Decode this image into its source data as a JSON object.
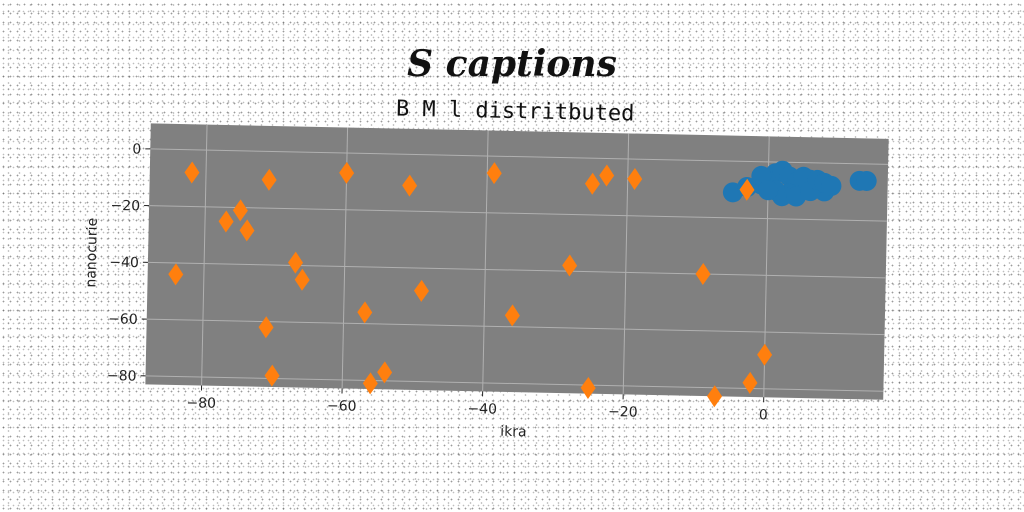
{
  "chart_data": {
    "type": "scatter",
    "title": "S captions",
    "subtitle": "B M l distritbuted",
    "xlabel": "ikra",
    "ylabel": "nanocurie",
    "xlim": [
      -88,
      17
    ],
    "ylim": [
      -83,
      9
    ],
    "xticks": [
      -80,
      -60,
      -40,
      -20,
      0
    ],
    "yticks": [
      0,
      -20,
      -40,
      -60,
      -80
    ],
    "grid": true,
    "legend": "none",
    "colors": {
      "plot_background": "#808080",
      "grid": "#b0b0b0",
      "series_1": "#1f77b4",
      "series_2": "#ff7f0e"
    },
    "series": [
      {
        "marker": "circle",
        "color": "#1f77b4",
        "points": [
          [
            -5,
            -11
          ],
          [
            -3,
            -9
          ],
          [
            -1,
            -8
          ],
          [
            0,
            -6
          ],
          [
            1,
            -4
          ],
          [
            2,
            -3
          ],
          [
            3,
            -5
          ],
          [
            4,
            -7
          ],
          [
            5,
            -9
          ],
          [
            6,
            -6
          ],
          [
            7,
            -8
          ],
          [
            8,
            -10
          ],
          [
            3,
            -11
          ],
          [
            2,
            -12
          ],
          [
            1,
            -10
          ],
          [
            4,
            -12
          ],
          [
            5,
            -5
          ],
          [
            6,
            -10
          ],
          [
            7,
            -6
          ],
          [
            8,
            -7
          ],
          [
            -1,
            -5
          ],
          [
            0,
            -10
          ],
          [
            9,
            -8
          ],
          [
            13,
            -6
          ],
          [
            14,
            -6
          ]
        ]
      },
      {
        "marker": "diamond",
        "color": "#ff7f0e",
        "points": [
          [
            -82,
            -8
          ],
          [
            -84,
            -44
          ],
          [
            -77,
            -25
          ],
          [
            -75,
            -21
          ],
          [
            -74,
            -28
          ],
          [
            -71,
            -10
          ],
          [
            -71,
            -62
          ],
          [
            -70,
            -79
          ],
          [
            -67,
            -39
          ],
          [
            -66,
            -45
          ],
          [
            -60,
            -7
          ],
          [
            -57,
            -56
          ],
          [
            -56,
            -81
          ],
          [
            -54,
            -77
          ],
          [
            -51,
            -11
          ],
          [
            -49,
            -48
          ],
          [
            -39,
            -6
          ],
          [
            -36,
            -56
          ],
          [
            -28,
            -38
          ],
          [
            -25,
            -9
          ],
          [
            -25,
            -81
          ],
          [
            -23,
            -6
          ],
          [
            -19,
            -7
          ],
          [
            -9,
            -40
          ],
          [
            -7,
            -83
          ],
          [
            -3,
            -10
          ],
          [
            -2,
            -78
          ],
          [
            0,
            -68
          ]
        ]
      }
    ]
  }
}
